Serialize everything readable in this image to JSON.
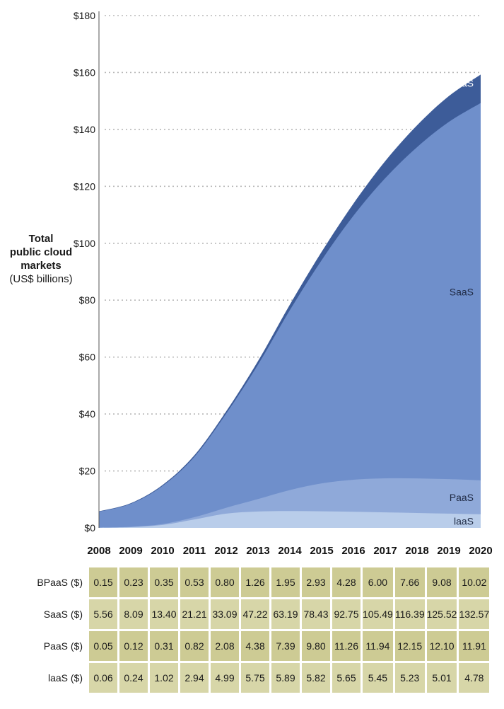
{
  "chart_data": {
    "type": "area",
    "stacked": true,
    "ylabel_line1": "Total",
    "ylabel_line2": "public cloud",
    "ylabel_line3": "markets",
    "ylabel_line4": "(US$ billions)",
    "x": [
      "2008",
      "2009",
      "2010",
      "2011",
      "2012",
      "2013",
      "2014",
      "2015",
      "2016",
      "2017",
      "2018",
      "2019",
      "2020"
    ],
    "y_ticks": [
      "$0",
      "$20",
      "$40",
      "$60",
      "$80",
      "$100",
      "$120",
      "$140",
      "$160",
      "$180"
    ],
    "ylim": [
      0,
      180
    ],
    "grid": "dotted horizontal",
    "series": [
      {
        "name": "IaaS",
        "label": "laaS",
        "color": "#b9cdea",
        "values": [
          0.06,
          0.24,
          1.02,
          2.94,
          4.99,
          5.75,
          5.89,
          5.82,
          5.65,
          5.45,
          5.23,
          5.01,
          4.78
        ]
      },
      {
        "name": "PaaS",
        "label": "PaaS",
        "color": "#8fa9d9",
        "values": [
          0.05,
          0.12,
          0.31,
          0.82,
          2.08,
          4.38,
          7.39,
          9.8,
          11.26,
          11.94,
          12.15,
          12.1,
          11.91
        ]
      },
      {
        "name": "SaaS",
        "label": "SaaS",
        "color": "#6f8fcb",
        "values": [
          5.56,
          8.09,
          13.4,
          21.21,
          33.09,
          47.22,
          63.19,
          78.43,
          92.75,
          105.49,
          116.39,
          125.52,
          132.57
        ]
      },
      {
        "name": "BPaaS",
        "label": "BPaaS",
        "color": "#3d5c99",
        "values": [
          0.15,
          0.23,
          0.35,
          0.53,
          0.8,
          1.26,
          1.95,
          2.93,
          4.28,
          6.0,
          7.66,
          9.08,
          10.02
        ]
      }
    ]
  },
  "table": {
    "rows": [
      {
        "label": "BPaaS ($)",
        "values": [
          "0.15",
          "0.23",
          "0.35",
          "0.53",
          "0.80",
          "1.26",
          "1.95",
          "2.93",
          "4.28",
          "6.00",
          "7.66",
          "9.08",
          "10.02"
        ]
      },
      {
        "label": "SaaS ($)",
        "values": [
          "5.56",
          "8.09",
          "13.40",
          "21.21",
          "33.09",
          "47.22",
          "63.19",
          "78.43",
          "92.75",
          "105.49",
          "116.39",
          "125.52",
          "132.57"
        ]
      },
      {
        "label": "PaaS ($)",
        "values": [
          "0.05",
          "0.12",
          "0.31",
          "0.82",
          "2.08",
          "4.38",
          "7.39",
          "9.80",
          "11.26",
          "11.94",
          "12.15",
          "12.10",
          "11.91"
        ]
      },
      {
        "label": "laaS ($)",
        "values": [
          "0.06",
          "0.24",
          "1.02",
          "2.94",
          "4.99",
          "5.75",
          "5.89",
          "5.82",
          "5.65",
          "5.45",
          "5.23",
          "5.01",
          "4.78"
        ]
      }
    ]
  }
}
